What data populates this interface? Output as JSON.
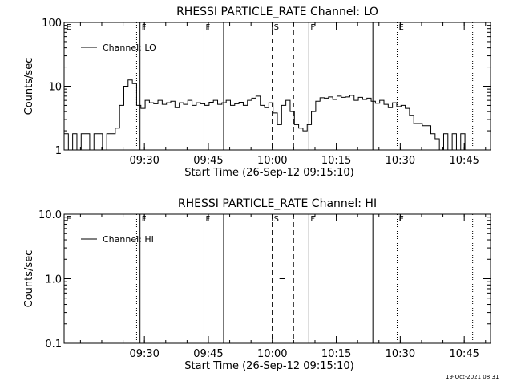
{
  "footer_timestamp": "19-Oct-2021 08:31",
  "chart_data": [
    {
      "type": "line",
      "title": "RHESSI PARTICLE_RATE Channel: LO",
      "xlabel": "Start Time (26-Sep-12 09:15:10)",
      "ylabel": "Counts/sec",
      "x_units": "minutes after 09:15:10",
      "xlim": [
        0,
        100
      ],
      "ylim": [
        1,
        100
      ],
      "log_y": true,
      "x_ticks": [
        {
          "value": 18.83,
          "label": "09:30"
        },
        {
          "value": 33.83,
          "label": "09:45"
        },
        {
          "value": 48.83,
          "label": "10:00"
        },
        {
          "value": 63.83,
          "label": "10:15"
        },
        {
          "value": 78.83,
          "label": "10:30"
        },
        {
          "value": 93.83,
          "label": "10:45"
        }
      ],
      "y_ticks": [
        {
          "value": 1,
          "label": "1"
        },
        {
          "value": 10,
          "label": "10"
        },
        {
          "value": 100,
          "label": "100"
        }
      ],
      "legend": {
        "placement": "top-left",
        "entries": [
          "Channel: LO"
        ]
      },
      "event_markers": [
        {
          "x": 0.3,
          "label": "E",
          "style": "none"
        },
        {
          "x": 17.0,
          "label": "",
          "style": "dotted"
        },
        {
          "x": 17.8,
          "label": "F",
          "style": "solid"
        },
        {
          "x": 32.8,
          "label": "F",
          "style": "solid"
        },
        {
          "x": 37.4,
          "label": "",
          "style": "solid"
        },
        {
          "x": 48.8,
          "label": "S",
          "style": "dashed"
        },
        {
          "x": 53.8,
          "label": "",
          "style": "dashed"
        },
        {
          "x": 57.4,
          "label": "F",
          "style": "solid"
        },
        {
          "x": 72.4,
          "label": "",
          "style": "solid"
        },
        {
          "x": 78.1,
          "label": "E",
          "style": "dotted"
        },
        {
          "x": 95.8,
          "label": "",
          "style": "dotted"
        }
      ],
      "series": [
        {
          "name": "Channel: LO",
          "x": [
            0,
            1,
            2,
            3,
            4,
            5,
            6,
            7,
            8,
            9,
            10,
            11,
            12,
            13,
            14,
            15,
            16,
            17,
            18,
            19,
            20,
            21,
            22,
            23,
            24,
            25,
            26,
            27,
            28,
            29,
            30,
            31,
            32,
            33,
            34,
            35,
            36,
            37,
            38,
            39,
            40,
            41,
            42,
            43,
            44,
            45,
            46,
            47,
            48,
            49,
            50,
            51,
            52,
            53,
            54,
            55,
            56,
            57,
            58,
            59,
            60,
            61,
            62,
            63,
            64,
            65,
            66,
            67,
            68,
            69,
            70,
            71,
            72,
            73,
            74,
            75,
            76,
            77,
            78,
            79,
            80,
            81,
            82,
            83,
            84,
            85,
            86,
            87,
            88,
            89,
            90,
            91,
            92,
            93,
            94,
            95,
            96
          ],
          "y": [
            1.8,
            1,
            1.8,
            1,
            1.8,
            1.8,
            1,
            1.8,
            1.8,
            1,
            1.8,
            1.8,
            2.2,
            5,
            10,
            12.5,
            11,
            5,
            4.5,
            6,
            5.5,
            5.3,
            6,
            5.2,
            5.5,
            5.8,
            4.6,
            5.5,
            5.2,
            6,
            5,
            5.5,
            5.3,
            5,
            5.6,
            6,
            5.2,
            5.5,
            6,
            5,
            5.3,
            5.6,
            5,
            6,
            6.5,
            7,
            5,
            4.6,
            5.5,
            3.8,
            2.5,
            5,
            6,
            4,
            2.5,
            2.2,
            2,
            2.5,
            4,
            5.8,
            6.6,
            6.5,
            6.8,
            6.2,
            7,
            6.7,
            6.8,
            7.2,
            6,
            6.7,
            6.2,
            6.5,
            5.8,
            5.4,
            6,
            5.2,
            4.6,
            5.5,
            4.8,
            5,
            4.5,
            3.5,
            2.6,
            2.6,
            2.4,
            2.4,
            1.8,
            1.5,
            1,
            1.8,
            1,
            1.8,
            1,
            1.8,
            1,
            1,
            1
          ]
        }
      ]
    },
    {
      "type": "line",
      "title": "RHESSI PARTICLE_RATE Channel: HI",
      "xlabel": "Start Time (26-Sep-12 09:15:10)",
      "ylabel": "Counts/sec",
      "x_units": "minutes after 09:15:10",
      "xlim": [
        0,
        100
      ],
      "ylim": [
        0.1,
        10
      ],
      "log_y": true,
      "x_ticks": [
        {
          "value": 18.83,
          "label": "09:30"
        },
        {
          "value": 33.83,
          "label": "09:45"
        },
        {
          "value": 48.83,
          "label": "10:00"
        },
        {
          "value": 63.83,
          "label": "10:15"
        },
        {
          "value": 78.83,
          "label": "10:30"
        },
        {
          "value": 93.83,
          "label": "10:45"
        }
      ],
      "y_ticks": [
        {
          "value": 0.1,
          "label": "0.1"
        },
        {
          "value": 1.0,
          "label": "1.0"
        },
        {
          "value": 10.0,
          "label": "10.0"
        }
      ],
      "legend": {
        "placement": "top-left",
        "entries": [
          "Channel: HI"
        ]
      },
      "event_markers": [
        {
          "x": 0.3,
          "label": "E",
          "style": "none"
        },
        {
          "x": 17.0,
          "label": "",
          "style": "dotted"
        },
        {
          "x": 17.8,
          "label": "F",
          "style": "solid"
        },
        {
          "x": 32.8,
          "label": "F",
          "style": "solid"
        },
        {
          "x": 37.4,
          "label": "",
          "style": "solid"
        },
        {
          "x": 48.8,
          "label": "S",
          "style": "dashed"
        },
        {
          "x": 53.8,
          "label": "",
          "style": "dashed"
        },
        {
          "x": 57.4,
          "label": "F",
          "style": "solid"
        },
        {
          "x": 72.4,
          "label": "",
          "style": "solid"
        },
        {
          "x": 78.1,
          "label": "E",
          "style": "dotted"
        },
        {
          "x": 95.8,
          "label": "",
          "style": "dotted"
        }
      ],
      "series": [
        {
          "name": "Channel: HI",
          "x": [
            50.5,
            51.8
          ],
          "y": [
            1.0,
            1.0
          ]
        }
      ]
    }
  ]
}
